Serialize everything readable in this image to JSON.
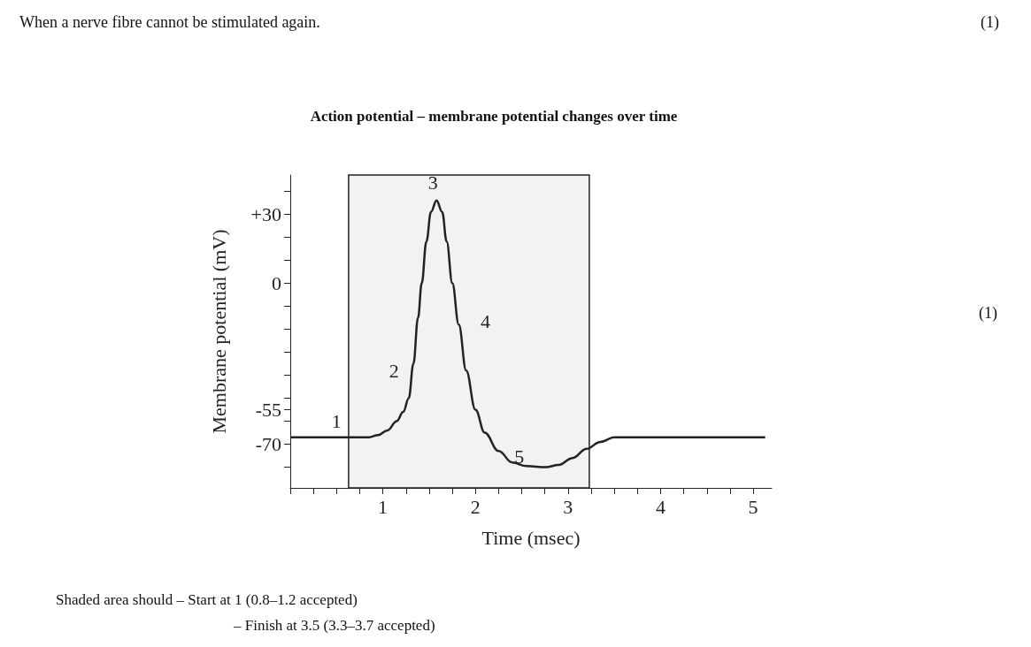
{
  "chart_data": {
    "type": "line",
    "title": "Action potential – membrane potential changes over time",
    "xlabel": "Time (msec)",
    "ylabel": "Membrane potential (mV)",
    "x": [
      0,
      0.5,
      0.85,
      0.95,
      1.05,
      1.15,
      1.22,
      1.28,
      1.33,
      1.38,
      1.42,
      1.47,
      1.52,
      1.58,
      1.64,
      1.69,
      1.75,
      1.82,
      1.9,
      2.0,
      2.1,
      2.25,
      2.4,
      2.55,
      2.76,
      2.9,
      3.05,
      3.2,
      3.35,
      3.5,
      3.7,
      4.5,
      5.13
    ],
    "series": [
      {
        "color": "#222222",
        "values": [
          -67,
          -67,
          -67,
          -66,
          -64,
          -60,
          -56,
          -50,
          -35,
          -15,
          0,
          18,
          31,
          36,
          31,
          18,
          0,
          -18,
          -38,
          -55,
          -65,
          -73,
          -78,
          -79.5,
          -80,
          -79,
          -76,
          -72,
          -69,
          -67,
          -67,
          -67,
          -67
        ]
      }
    ],
    "xlim": [
      0,
      5.2
    ],
    "ylim": [
      -89,
      47
    ],
    "xticks": [
      {
        "value": 0,
        "label": null
      },
      {
        "value": 0.25,
        "label": null
      },
      {
        "value": 0.5,
        "label": null
      },
      {
        "value": 0.75,
        "label": null
      },
      1,
      {
        "value": 1.25,
        "label": null
      },
      {
        "value": 1.5,
        "label": null
      },
      {
        "value": 1.75,
        "label": null
      },
      2,
      {
        "value": 2.25,
        "label": null
      },
      {
        "value": 2.5,
        "label": null
      },
      {
        "value": 2.75,
        "label": null
      },
      3,
      {
        "value": 3.25,
        "label": null
      },
      {
        "value": 3.5,
        "label": null
      },
      {
        "value": 3.75,
        "label": null
      },
      4,
      {
        "value": 4.25,
        "label": null
      },
      {
        "value": 4.5,
        "label": null
      },
      {
        "value": 4.75,
        "label": null
      },
      5
    ],
    "yticks": [
      {
        "value": 40,
        "label": null
      },
      {
        "value": 30,
        "label": "+30"
      },
      {
        "value": 20,
        "label": null
      },
      {
        "value": 10,
        "label": null
      },
      0,
      {
        "value": -10,
        "label": null
      },
      {
        "value": -20,
        "label": null
      },
      {
        "value": -30,
        "label": null
      },
      {
        "value": -40,
        "label": null
      },
      {
        "value": -50,
        "label": null
      },
      -55,
      {
        "value": -60,
        "label": null
      },
      -70,
      {
        "value": -80,
        "label": null
      }
    ],
    "bands": [
      {
        "axis": "x",
        "from": 0.63,
        "to": 3.23,
        "color": "#f2f2f2"
      }
    ],
    "marker": "none",
    "line_style": "solid",
    "grid": false,
    "annotations": [
      {
        "text": "1",
        "x": 0.5,
        "y": -67
      },
      {
        "text": "2",
        "x": 1.33,
        "y": -35
      },
      {
        "text": "3",
        "x": 1.58,
        "y": 36
      },
      {
        "text": "4",
        "x": 1.82,
        "y": -18
      },
      {
        "text": "5",
        "x": 2.76,
        "y": -80
      },
      "When a nerve fibre cannot be stimulated again.",
      "(1)",
      "(1)",
      "Shaded area should – Start at 1 (0.8–1.2 accepted)",
      "– Finish at 3.5 (3.3–3.7 accepted)"
    ]
  }
}
